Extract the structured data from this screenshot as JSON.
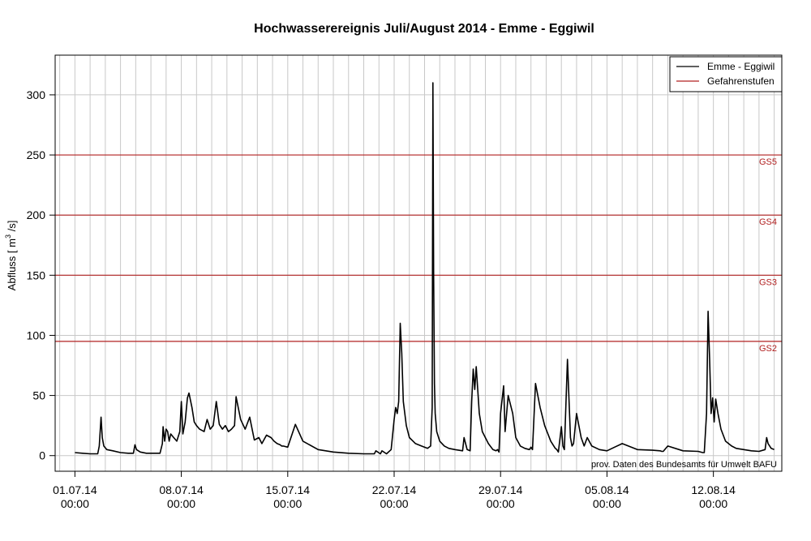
{
  "chart_data": {
    "type": "line",
    "title": "Hochwasserereignis Juli/August 2014 - Emme - Eggiwil",
    "ylabel_prefix": "Abfluss [ m",
    "ylabel_sup": "3",
    "ylabel_suffix": " /s]",
    "ylim": [
      -13,
      333
    ],
    "xlim": [
      -1.3,
      46.5
    ],
    "y_ticks": [
      0,
      50,
      100,
      150,
      200,
      250,
      300
    ],
    "x_ticks": [
      {
        "x": 0,
        "date": "01.07.14",
        "time": "00:00"
      },
      {
        "x": 7,
        "date": "08.07.14",
        "time": "00:00"
      },
      {
        "x": 14,
        "date": "15.07.14",
        "time": "00:00"
      },
      {
        "x": 21,
        "date": "22.07.14",
        "time": "00:00"
      },
      {
        "x": 28,
        "date": "29.07.14",
        "time": "00:00"
      },
      {
        "x": 35,
        "date": "05.08.14",
        "time": "00:00"
      },
      {
        "x": 42,
        "date": "12.08.14",
        "time": "00:00"
      }
    ],
    "grid": "daily vertical lines, horizontal lines at y ticks",
    "legend_placement": "top-right",
    "legend": [
      {
        "label": "Emme - Eggiwil",
        "color": "#000000"
      },
      {
        "label": "Gefahrenstufen",
        "color": "#b22222"
      }
    ],
    "danger_levels": [
      {
        "label": "GS2",
        "value": 95,
        "color": "#b22222"
      },
      {
        "label": "GS3",
        "value": 150,
        "color": "#b22222"
      },
      {
        "label": "GS4",
        "value": 200,
        "color": "#b22222"
      },
      {
        "label": "GS5",
        "value": 250,
        "color": "#b22222"
      }
    ],
    "source_note": "prov. Daten des Bundesamts für Umwelt BAFU",
    "series": [
      {
        "name": "Emme - Eggiwil",
        "color": "#000000",
        "x": [
          0,
          0.5,
          1.0,
          1.5,
          1.6,
          1.72,
          1.8,
          1.9,
          2.1,
          2.5,
          3,
          3.5,
          3.85,
          3.95,
          4.05,
          4.3,
          4.7,
          5.0,
          5.6,
          5.75,
          5.8,
          5.9,
          6.0,
          6.1,
          6.2,
          6.3,
          6.5,
          6.7,
          6.9,
          7.0,
          7.1,
          7.25,
          7.4,
          7.5,
          7.7,
          7.85,
          8.0,
          8.2,
          8.5,
          8.7,
          8.9,
          9.1,
          9.3,
          9.5,
          9.7,
          9.9,
          10.1,
          10.3,
          10.5,
          10.6,
          10.9,
          11.2,
          11.5,
          11.8,
          12.1,
          12.3,
          12.6,
          12.9,
          13.1,
          13.3,
          13.5,
          13.6,
          13.7,
          14.0,
          14.5,
          15.0,
          16,
          17,
          18,
          19,
          19.7,
          19.8,
          20.1,
          20.2,
          20.5,
          20.8,
          21.0,
          21.1,
          21.2,
          21.3,
          21.4,
          21.5,
          21.6,
          21.8,
          22.0,
          22.4,
          22.8,
          23.2,
          23.4,
          23.5,
          23.55,
          23.6,
          23.65,
          23.7,
          23.8,
          24.0,
          24.3,
          24.6,
          25.0,
          25.5,
          25.6,
          25.8,
          26.0,
          26.1,
          26.2,
          26.3,
          26.4,
          26.6,
          26.8,
          27.2,
          27.5,
          27.7,
          27.8,
          27.9,
          28.0,
          28.2,
          28.3,
          28.5,
          28.8,
          29.0,
          29.3,
          29.6,
          29.9,
          30.0,
          30.1,
          30.3,
          30.6,
          30.9,
          31.3,
          31.6,
          31.7,
          31.8,
          32.0,
          32.1,
          32.2,
          32.4,
          32.6,
          32.7,
          32.8,
          33.0,
          33.3,
          33.5,
          33.7,
          34.0,
          34.5,
          35.0,
          35.5,
          36,
          37,
          38,
          38.5,
          38.6,
          38.7,
          39,
          40,
          41,
          41.3,
          41.4,
          41.55,
          41.65,
          41.75,
          41.85,
          41.95,
          42.05,
          42.15,
          42.3,
          42.5,
          42.8,
          43.2,
          43.5,
          44.0,
          44.5,
          45.0,
          45.4,
          45.5,
          45.6,
          45.8,
          46.0
        ],
        "y": [
          2.5,
          2,
          1.5,
          1.5,
          8,
          32,
          15,
          8,
          5,
          4,
          2.5,
          2,
          2,
          9,
          5,
          3,
          2,
          2,
          2,
          10,
          24,
          12,
          22,
          20,
          12,
          18,
          15,
          12,
          20,
          45,
          18,
          28,
          48,
          52,
          40,
          28,
          25,
          22,
          20,
          30,
          22,
          25,
          45,
          26,
          22,
          25,
          20,
          22,
          25,
          49,
          30,
          22,
          32,
          13,
          15,
          10,
          17,
          15,
          12,
          10,
          9,
          8,
          8,
          7,
          26,
          12,
          5,
          3,
          2,
          1.5,
          1.5,
          4,
          1.5,
          4,
          1.5,
          5,
          30,
          40,
          35,
          45,
          110,
          85,
          45,
          25,
          15,
          10,
          8,
          6,
          8,
          40,
          310,
          150,
          60,
          35,
          20,
          12,
          8,
          6,
          5,
          4,
          15,
          5,
          4,
          45,
          72,
          55,
          74,
          35,
          20,
          10,
          5,
          4,
          5,
          3,
          35,
          58,
          20,
          50,
          35,
          15,
          8,
          6,
          5,
          7,
          5,
          60,
          40,
          25,
          12,
          6,
          5,
          3,
          24,
          8,
          5,
          80,
          15,
          8,
          10,
          35,
          15,
          8,
          15,
          8,
          5,
          4,
          7,
          10,
          5,
          4.5,
          4,
          3.5,
          3.5,
          8,
          4,
          3.5,
          2.5,
          2.5,
          35,
          120,
          80,
          35,
          48,
          28,
          47,
          35,
          22,
          12,
          8,
          6,
          5,
          4,
          3.5,
          5,
          15,
          10,
          6,
          5
        ]
      }
    ]
  }
}
